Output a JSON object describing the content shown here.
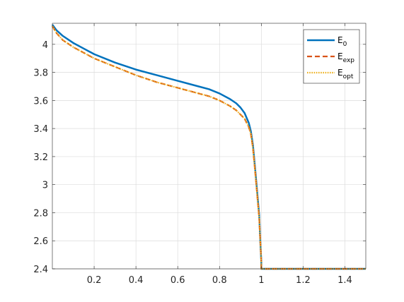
{
  "chart_data": {
    "type": "line",
    "title": "",
    "xlabel": "",
    "ylabel": "",
    "xlim": [
      0,
      1.5
    ],
    "ylim": [
      2.4,
      4.15
    ],
    "grid": true,
    "legend_position": "top-right",
    "xticks": [
      0.2,
      0.4,
      0.6,
      0.8,
      1,
      1.2,
      1.4
    ],
    "xtick_labels": [
      "0.2",
      "0.4",
      "0.6",
      "0.8",
      "1",
      "1.2",
      "1.4"
    ],
    "yticks": [
      2.4,
      2.6,
      2.8,
      3,
      3.2,
      3.4,
      3.6,
      3.8,
      4
    ],
    "ytick_labels": [
      "2.4",
      "2.6",
      "2.8",
      "3",
      "3.2",
      "3.4",
      "3.6",
      "3.8",
      "4"
    ],
    "series": [
      {
        "name": "E0",
        "label_main": "E",
        "label_sub": "0",
        "color": "#0072BD",
        "style": "solid",
        "x": [
          0,
          0.02,
          0.05,
          0.1,
          0.15,
          0.2,
          0.3,
          0.4,
          0.5,
          0.6,
          0.7,
          0.75,
          0.8,
          0.85,
          0.88,
          0.9,
          0.92,
          0.94,
          0.95,
          0.96,
          0.97,
          0.98,
          0.99,
          0.995,
          1.0,
          1.0,
          1.1,
          1.2,
          1.3,
          1.4,
          1.5
        ],
        "y": [
          4.14,
          4.1,
          4.06,
          4.01,
          3.97,
          3.93,
          3.87,
          3.82,
          3.78,
          3.74,
          3.7,
          3.68,
          3.65,
          3.61,
          3.58,
          3.55,
          3.51,
          3.44,
          3.38,
          3.28,
          3.12,
          2.95,
          2.78,
          2.6,
          2.45,
          2.4,
          2.4,
          2.4,
          2.4,
          2.4,
          2.4
        ]
      },
      {
        "name": "Eexp",
        "label_main": "E",
        "label_sub": "exp",
        "color": "#D95319",
        "style": "dashed",
        "x": [
          0,
          0.02,
          0.05,
          0.1,
          0.15,
          0.2,
          0.3,
          0.4,
          0.5,
          0.6,
          0.7,
          0.75,
          0.8,
          0.85,
          0.88,
          0.9,
          0.92,
          0.94,
          0.95,
          0.96,
          0.97,
          0.98,
          0.99,
          0.995,
          1.0,
          1.0,
          1.1,
          1.2,
          1.3,
          1.4,
          1.5
        ],
        "y": [
          4.13,
          4.08,
          4.03,
          3.98,
          3.94,
          3.9,
          3.84,
          3.78,
          3.73,
          3.69,
          3.65,
          3.63,
          3.6,
          3.56,
          3.53,
          3.5,
          3.47,
          3.41,
          3.36,
          3.26,
          3.1,
          2.93,
          2.76,
          2.6,
          2.45,
          2.4,
          2.4,
          2.4,
          2.4,
          2.4,
          2.4
        ]
      },
      {
        "name": "Eopt",
        "label_main": "E",
        "label_sub": "opt",
        "color": "#EDB120",
        "style": "dotted",
        "x": [
          0,
          0.02,
          0.05,
          0.1,
          0.15,
          0.2,
          0.3,
          0.4,
          0.5,
          0.6,
          0.7,
          0.75,
          0.8,
          0.85,
          0.88,
          0.9,
          0.92,
          0.94,
          0.95,
          0.96,
          0.97,
          0.98,
          0.99,
          0.995,
          1.0,
          1.0,
          1.1,
          1.2,
          1.3,
          1.4,
          1.5
        ],
        "y": [
          4.13,
          4.08,
          4.03,
          3.98,
          3.94,
          3.9,
          3.84,
          3.78,
          3.73,
          3.69,
          3.65,
          3.63,
          3.6,
          3.56,
          3.53,
          3.5,
          3.47,
          3.41,
          3.36,
          3.26,
          3.1,
          2.93,
          2.76,
          2.6,
          2.45,
          2.4,
          2.4,
          2.4,
          2.4,
          2.4,
          2.4
        ]
      }
    ]
  }
}
